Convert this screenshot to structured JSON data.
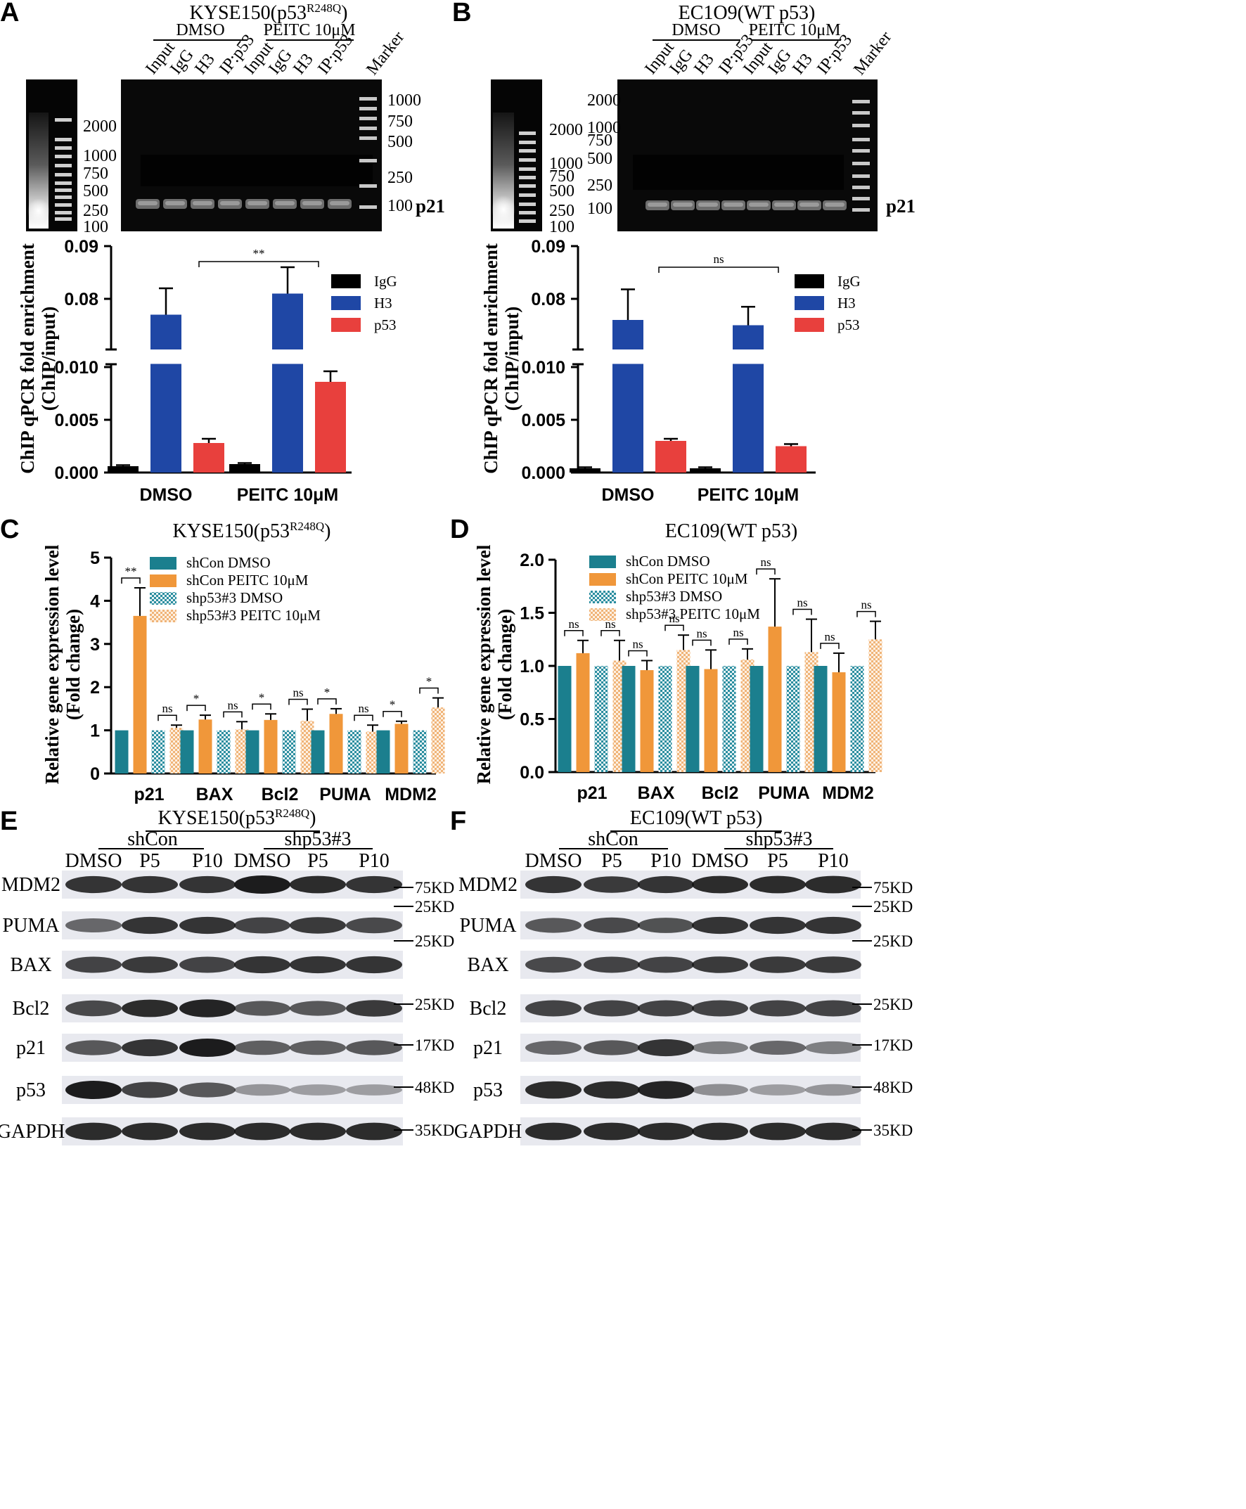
{
  "panels": {
    "A": {
      "letter": "A",
      "title_main": "KYSE150(p53",
      "title_sup": "R248Q",
      "title_end": ")",
      "marker_name": "Marker",
      "product": "p21",
      "group_dmso": "DMSO",
      "group_peitc": "PEITC 10μM",
      "lanes": [
        "Input",
        "IgG",
        "H3",
        "IP:p53",
        "Input",
        "IgG",
        "H3",
        "IP:p53"
      ],
      "ladder_left": [
        "2000",
        "1000",
        "750",
        "500",
        "250",
        "100"
      ],
      "ladder_right": [
        "1000",
        "750",
        "500",
        "250",
        "100"
      ]
    },
    "B": {
      "letter": "B",
      "title": "EC1O9(WT p53)",
      "marker_name": "Marker",
      "product": "p21",
      "group_dmso": "DMSO",
      "group_peitc": "PEITC 10μM",
      "lanes": [
        "Input",
        "IgG",
        "H3",
        "IP:p53",
        "Input",
        "IgG",
        "H3",
        "IP:p53"
      ],
      "ladder_left": [
        "2000",
        "1000",
        "750",
        "500",
        "250",
        "100"
      ],
      "ladder_right": [
        "2000",
        "1000",
        "750",
        "500",
        "250",
        "100"
      ]
    },
    "C": {
      "letter": "C",
      "title_main": "KYSE150(p53",
      "title_sup": "R248Q",
      "title_end": ")"
    },
    "D": {
      "letter": "D",
      "title": "EC109(WT p53)"
    },
    "E": {
      "letter": "E",
      "title_main": "KYSE150(p53",
      "title_sup": "R248Q",
      "title_end": ")",
      "group1": "shCon",
      "group2": "shp53#3",
      "lanes": [
        "DMSO",
        "P5",
        "P10",
        "DMSO",
        "P5",
        "P10"
      ],
      "rows": [
        {
          "label": "MDM2",
          "kd": "75KD"
        },
        {
          "label": "PUMA",
          "kd": "25KD"
        },
        {
          "label": "BAX",
          "kd": "25KD"
        },
        {
          "label": "Bcl2",
          "kd": "25KD"
        },
        {
          "label": "p21",
          "kd": "17KD"
        },
        {
          "label": "p53",
          "kd": "48KD"
        },
        {
          "label": "GAPDH",
          "kd": "35KD"
        }
      ]
    },
    "F": {
      "letter": "F",
      "title": "EC109(WT p53)",
      "group1": "shCon",
      "group2": "shp53#3",
      "lanes": [
        "DMSO",
        "P5",
        "P10",
        "DMSO",
        "P5",
        "P10"
      ],
      "rows": [
        {
          "label": "MDM2",
          "kd": "75KD"
        },
        {
          "label": "PUMA",
          "kd": "25KD"
        },
        {
          "label": "BAX",
          "kd": "25KD"
        },
        {
          "label": "Bcl2",
          "kd": "25KD"
        },
        {
          "label": "p21",
          "kd": "17KD"
        },
        {
          "label": "p53",
          "kd": "48KD"
        },
        {
          "label": "GAPDH",
          "kd": "35KD"
        }
      ]
    }
  },
  "colors": {
    "igg": "#000000",
    "h3": "#1f47a5",
    "p53": "#e8403d",
    "teal": "#1b7f8e",
    "orange": "#f0973a",
    "teal_hatch": "#3a98aa",
    "orange_hatch": "#f3c28e"
  },
  "chart_data": [
    {
      "panel": "A",
      "type": "bar",
      "categories": [
        "DMSO",
        "PEITC 10μM"
      ],
      "series": [
        {
          "name": "IgG",
          "values": [
            0.0006,
            0.0008
          ],
          "errors": [
            0.0001,
            0.0001
          ]
        },
        {
          "name": "H3",
          "values": [
            0.077,
            0.081
          ],
          "errors": [
            0.005,
            0.005
          ]
        },
        {
          "name": "p53",
          "values": [
            0.0028,
            0.0086
          ],
          "errors": [
            0.0004,
            0.001
          ]
        }
      ],
      "ylabel_line1": "ChIP qPCR fold enrichment",
      "ylabel_line2": "(ChIP/input)",
      "yticks_low": [
        "0.000",
        "0.005",
        "0.010"
      ],
      "yticks_high": [
        "0.08",
        "0.09"
      ],
      "broken_axis": true,
      "legend_position": "top-right",
      "significance": "**"
    },
    {
      "panel": "B",
      "type": "bar",
      "categories": [
        "DMSO",
        "PEITC 10μM"
      ],
      "series": [
        {
          "name": "IgG",
          "values": [
            0.0004,
            0.0004
          ],
          "errors": [
            0.0001,
            0.0001
          ]
        },
        {
          "name": "H3",
          "values": [
            0.076,
            0.075
          ],
          "errors": [
            0.0058,
            0.0035
          ]
        },
        {
          "name": "p53",
          "values": [
            0.003,
            0.0025
          ],
          "errors": [
            0.0002,
            0.0002
          ]
        }
      ],
      "ylabel_line1": "ChIP qPCR fold enrichment",
      "ylabel_line2": "(ChIP/input)",
      "yticks_low": [
        "0.000",
        "0.005",
        "0.010"
      ],
      "yticks_high": [
        "0.08",
        "0.09"
      ],
      "broken_axis": true,
      "legend_position": "top-right",
      "significance": "ns"
    },
    {
      "panel": "C",
      "type": "bar",
      "categories": [
        "p21",
        "BAX",
        "Bcl2",
        "PUMA",
        "MDM2"
      ],
      "series": [
        {
          "name": "shCon DMSO",
          "values": [
            1,
            1,
            1,
            1,
            1
          ],
          "errors": [
            0,
            0,
            0,
            0,
            0
          ]
        },
        {
          "name": "shCon PEITC 10μM",
          "values": [
            3.65,
            1.25,
            1.24,
            1.38,
            1.15
          ],
          "errors": [
            0.65,
            0.1,
            0.14,
            0.12,
            0.06
          ]
        },
        {
          "name": "shp53#3 DMSO",
          "values": [
            1,
            1,
            1,
            1,
            1
          ],
          "errors": [
            0,
            0,
            0,
            0,
            0
          ]
        },
        {
          "name": "shp53#3 PEITC 10μM",
          "values": [
            1.06,
            1.02,
            1.22,
            0.97,
            1.53
          ],
          "errors": [
            0.06,
            0.18,
            0.27,
            0.15,
            0.22
          ]
        }
      ],
      "ylabel_line1": "Relative gene expression level",
      "ylabel_line2": "(Fold change)",
      "ylim": [
        0,
        5
      ],
      "yticks": [
        "0",
        "1",
        "2",
        "3",
        "4",
        "5"
      ],
      "legend_position": "top-left",
      "sig_shcon": [
        "**",
        "*",
        "*",
        "*",
        "*"
      ],
      "sig_shp53": [
        "ns",
        "ns",
        "ns",
        "ns",
        "*"
      ]
    },
    {
      "panel": "D",
      "type": "bar",
      "categories": [
        "p21",
        "BAX",
        "Bcl2",
        "PUMA",
        "MDM2"
      ],
      "series": [
        {
          "name": "shCon DMSO",
          "values": [
            1,
            1,
            1,
            1,
            1
          ],
          "errors": [
            0,
            0,
            0,
            0,
            0
          ]
        },
        {
          "name": "shCon PEITC 10μM",
          "values": [
            1.12,
            0.96,
            0.97,
            1.37,
            0.94
          ],
          "errors": [
            0.12,
            0.09,
            0.18,
            0.45,
            0.18
          ]
        },
        {
          "name": "shp53#3 DMSO",
          "values": [
            1,
            1,
            1,
            1,
            1
          ],
          "errors": [
            0,
            0,
            0,
            0,
            0
          ]
        },
        {
          "name": "shp53#3 PEITC 10μM",
          "values": [
            1.05,
            1.15,
            1.06,
            1.13,
            1.25
          ],
          "errors": [
            0.19,
            0.14,
            0.1,
            0.31,
            0.17
          ]
        }
      ],
      "ylabel_line1": "Relative gene expression level",
      "ylabel_line2": "(Fold change)",
      "ylim": [
        0,
        2
      ],
      "yticks": [
        "0.0",
        "0.5",
        "1.0",
        "1.5",
        "2.0"
      ],
      "legend_position": "top-left",
      "sig_shcon": [
        "ns",
        "ns",
        "ns",
        "ns",
        "ns"
      ],
      "sig_shp53": [
        "ns",
        "ns",
        "ns",
        "ns",
        "ns"
      ]
    }
  ]
}
